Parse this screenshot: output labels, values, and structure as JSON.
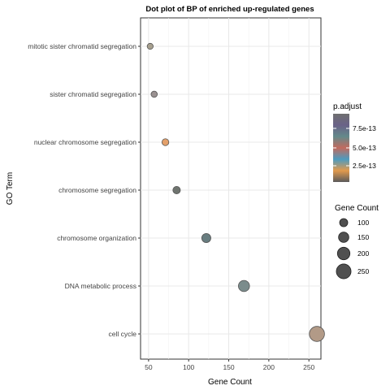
{
  "chart_data": {
    "type": "scatter",
    "title": "Dot plot of BP of enriched up-regulated genes",
    "xlabel": "Gene Count",
    "ylabel": "GO Term",
    "xlim": [
      40,
      265
    ],
    "x_ticks": [
      50,
      100,
      150,
      200,
      250
    ],
    "x_tick_labels": [
      "50",
      "100",
      "150",
      "200",
      "250"
    ],
    "grid": true,
    "categories": [
      "mitotic sister chromatid segregation",
      "sister chromatid segregation",
      "nuclear chromosome segregation",
      "chromosome segregation",
      "chromosome organization",
      "DNA metabolic process",
      "cell cycle"
    ],
    "points": [
      {
        "term": "mitotic sister chromatid segregation",
        "gene_count": 52,
        "p_adjust": 7.8e-13,
        "color": "#a7a08f"
      },
      {
        "term": "sister chromatid segregation",
        "gene_count": 57,
        "p_adjust": 7.9e-13,
        "color": "#9a9191"
      },
      {
        "term": "nuclear chromosome segregation",
        "gene_count": 71,
        "p_adjust": 1.8e-13,
        "color": "#e3a06a"
      },
      {
        "term": "chromosome segregation",
        "gene_count": 85,
        "p_adjust": 8.6e-13,
        "color": "#6f746f"
      },
      {
        "term": "chromosome organization",
        "gene_count": 122,
        "p_adjust": 6.4e-13,
        "color": "#687d80"
      },
      {
        "term": "DNA metabolic process",
        "gene_count": 169,
        "p_adjust": 6.6e-13,
        "color": "#7b8c8c"
      },
      {
        "term": "cell cycle",
        "gene_count": 260,
        "p_adjust": 3.6e-13,
        "color": "#b29a87"
      }
    ],
    "legend_color": {
      "title": "p.adjust",
      "labels": [
        "7.5e-13",
        "5.0e-13",
        "2.5e-13"
      ],
      "stops": [
        "#6f6f6f",
        "#6a6288",
        "#63898a",
        "#c26a5e",
        "#4d9bbf",
        "#e29a4c",
        "#5a5a5a"
      ]
    },
    "legend_size": {
      "title": "Gene Count",
      "labels": [
        "100",
        "150",
        "200",
        "250"
      ],
      "values": [
        100,
        150,
        200,
        250
      ],
      "color": "#505050"
    },
    "legend_placement": "right"
  }
}
